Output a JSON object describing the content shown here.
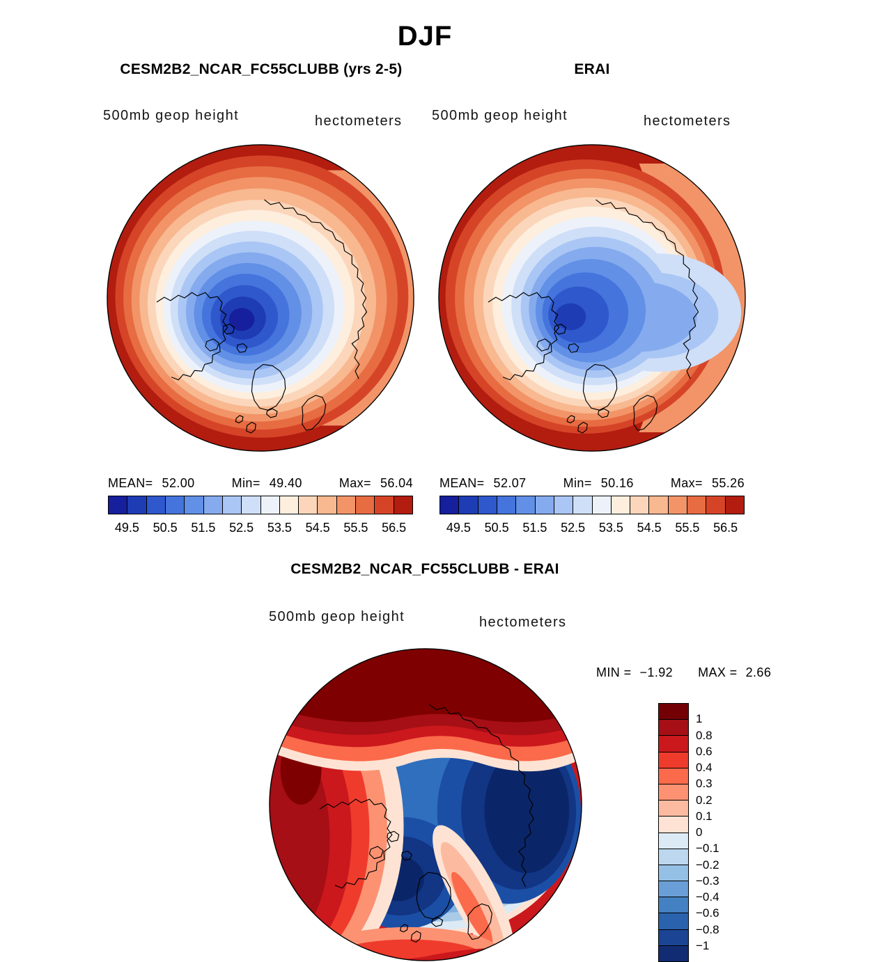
{
  "page": {
    "title": "DJF"
  },
  "panels": {
    "model": {
      "title": "CESM2B2_NCAR_FC55CLUBB (yrs 2-5)",
      "field_label": "500mb geop height",
      "units_label": "hectometers",
      "stats": {
        "mean_label": "MEAN=",
        "mean_value": "52.00",
        "min_label": "Min=",
        "min_value": "49.40",
        "max_label": "Max=",
        "max_value": "56.04"
      }
    },
    "erai": {
      "title": "ERAI",
      "field_label": "500mb geop height",
      "units_label": "hectometers",
      "stats": {
        "mean_label": "MEAN=",
        "mean_value": "52.07",
        "min_label": "Min=",
        "min_value": "50.16",
        "max_label": "Max=",
        "max_value": "55.26"
      }
    },
    "diff": {
      "title": "CESM2B2_NCAR_FC55CLUBB - ERAI",
      "field_label": "500mb geop height",
      "units_label": "hectometers",
      "stats": {
        "min_label": "MIN =",
        "min_value": "−1.92",
        "max_label": "MAX =",
        "max_value": "2.66"
      }
    }
  },
  "chart_data": [
    {
      "type": "heatmap",
      "subtype": "polar_stereographic_filled_contour_map",
      "panel": "model",
      "season": "DJF",
      "title": "CESM2B2_NCAR_FC55CLUBB (yrs 2-5)",
      "variable": "500mb geop height",
      "units": "hectometers",
      "mean": 52.0,
      "min": 49.4,
      "max": 56.04,
      "contour_levels": [
        49.5,
        50.0,
        50.5,
        51.0,
        51.5,
        52.0,
        52.5,
        53.0,
        53.5,
        54.0,
        54.5,
        55.0,
        55.5,
        56.0,
        56.5
      ],
      "tick_labels": [
        "49.5",
        "50.5",
        "51.5",
        "52.5",
        "53.5",
        "54.5",
        "55.5",
        "56.5"
      ],
      "palette": [
        "#161f9c",
        "#1e3cb4",
        "#2f58cc",
        "#4474dc",
        "#6190e6",
        "#85abee",
        "#aac6f4",
        "#cfdff8",
        "#edf2fa",
        "#fdeedd",
        "#fbd6ba",
        "#f8b890",
        "#f29468",
        "#e76c42",
        "#d64428",
        "#b21d10"
      ],
      "pattern": "Deep winter polar low (<50 hm, dark blue) centered over the Canadian Arctic side of the pole; heights increase outward through white to dark red (>56 hm) toward the mid-latitude map edge."
    },
    {
      "type": "heatmap",
      "subtype": "polar_stereographic_filled_contour_map",
      "panel": "erai",
      "season": "DJF",
      "title": "ERAI",
      "variable": "500mb geop height",
      "units": "hectometers",
      "mean": 52.07,
      "min": 50.16,
      "max": 55.26,
      "contour_levels": [
        49.5,
        50.0,
        50.5,
        51.0,
        51.5,
        52.0,
        52.5,
        53.0,
        53.5,
        54.0,
        54.5,
        55.0,
        55.5,
        56.0,
        56.5
      ],
      "tick_labels": [
        "49.5",
        "50.5",
        "51.5",
        "52.5",
        "53.5",
        "54.5",
        "55.5",
        "56.5"
      ],
      "palette": [
        "#161f9c",
        "#1e3cb4",
        "#2f58cc",
        "#4474dc",
        "#6190e6",
        "#85abee",
        "#aac6f4",
        "#cfdff8",
        "#edf2fa",
        "#fdeedd",
        "#fbd6ba",
        "#f8b890",
        "#f29468",
        "#e76c42",
        "#d64428",
        "#b21d10"
      ],
      "pattern": "Shallower polar low (minimum ≈50.2 hm, blue) over the central Arctic with blue extending toward the right edge; warm colors (≈55.3 hm max) confined to the left and lower map rim."
    },
    {
      "type": "heatmap",
      "subtype": "polar_stereographic_filled_contour_map",
      "panel": "difference",
      "season": "DJF",
      "title": "CESM2B2_NCAR_FC55CLUBB - ERAI",
      "variable": "500mb geop height",
      "units": "hectometers",
      "min": -1.92,
      "max": 2.66,
      "contour_levels": [
        -1,
        -0.8,
        -0.6,
        -0.4,
        -0.3,
        -0.2,
        -0.1,
        0,
        0.1,
        0.2,
        0.3,
        0.4,
        0.6,
        0.8,
        1
      ],
      "tick_labels": [
        "1",
        "0.8",
        "0.6",
        "0.4",
        "0.3",
        "0.2",
        "0.1",
        "0",
        "−0.1",
        "−0.2",
        "−0.3",
        "−0.4",
        "−0.6",
        "−0.8",
        "−1"
      ],
      "palette": [
        "#730005",
        "#a50f15",
        "#cb181d",
        "#ef3b2c",
        "#fb6a4a",
        "#fc9272",
        "#fcbba1",
        "#fee3d4",
        "#dceaf6",
        "#bcd7ee",
        "#95c0e6",
        "#699fd6",
        "#4381c2",
        "#2a62ae",
        "#1b4494",
        "#122c74"
      ],
      "palette_order": "top (>1, dark red) to bottom (<−1, dark blue)",
      "pattern": "Positive height bias (dark red, up to +2.66 hm) along the top and left/bottom map rim; negative bias (dark blue, down to −1.92 hm) over the central Arctic, a lobe at bottom-center and a large lobe on the right, separated by a warm channel toward the bottom-right edge."
    }
  ]
}
